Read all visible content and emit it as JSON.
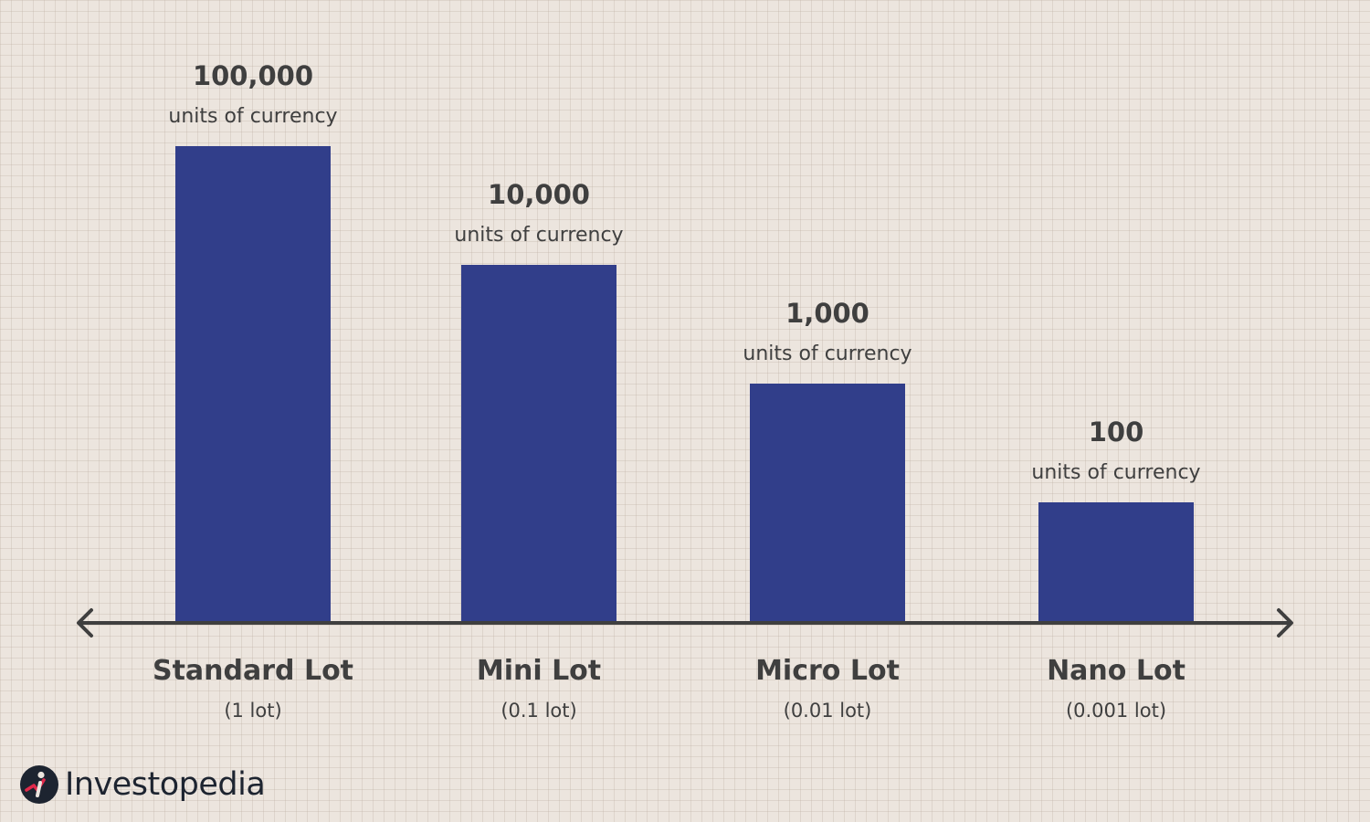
{
  "chart_data": {
    "type": "bar",
    "categories": [
      "Standard Lot",
      "Mini Lot",
      "Micro Lot",
      "Nano Lot"
    ],
    "category_sublabels": [
      "(1 lot)",
      "(0.1 lot)",
      "(0.01 lot)",
      "(0.001 lot)"
    ],
    "values": [
      100000,
      10000,
      1000,
      100
    ],
    "value_labels": [
      "100,000",
      "10,000",
      "1,000",
      "100"
    ],
    "value_unit_label": "units of currency",
    "scale": "log",
    "ylim": [
      10,
      1000000
    ],
    "grid": false,
    "legend": "none",
    "title": "",
    "xlabel": "",
    "ylabel": "",
    "bar_color": "#313e8a",
    "axis_color": "#3f3f3f"
  },
  "brand": {
    "name": "Investopedia",
    "icon": "investopedia-logo-icon"
  }
}
